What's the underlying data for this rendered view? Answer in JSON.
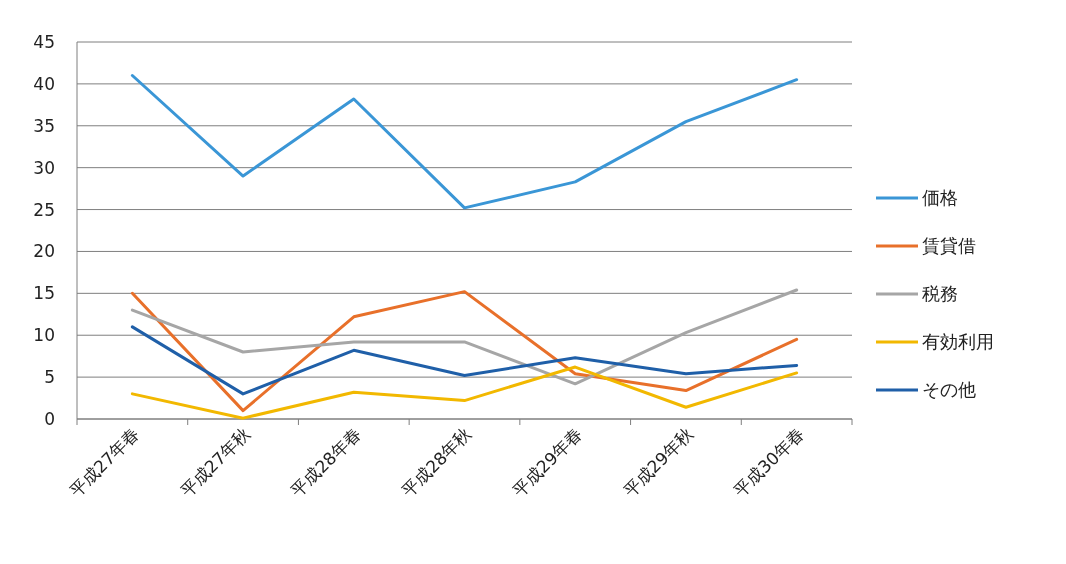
{
  "chart_data": {
    "type": "line",
    "categories": [
      "平成27年春",
      "平成27年秋",
      "平成28年春",
      "平成28年秋",
      "平成29年春",
      "平成29年秋",
      "平成30年春"
    ],
    "series": [
      {
        "name": "価格",
        "color": "#3a96d6",
        "values": [
          41,
          29,
          38.2,
          25.2,
          28.3,
          35.5,
          40.5
        ]
      },
      {
        "name": "賃貸借",
        "color": "#e8702a",
        "values": [
          15,
          1,
          12.2,
          15.2,
          5.4,
          3.4,
          9.5
        ]
      },
      {
        "name": "税務",
        "color": "#a6a6a6",
        "values": [
          13,
          8,
          9.2,
          9.2,
          4.2,
          10.3,
          15.4
        ]
      },
      {
        "name": "有効利用",
        "color": "#f2b800",
        "values": [
          3,
          0.1,
          3.2,
          2.2,
          6.2,
          1.4,
          5.5
        ]
      },
      {
        "name": "その他",
        "color": "#1f5fa8",
        "values": [
          11,
          3,
          8.2,
          5.2,
          7.3,
          5.4,
          6.4
        ]
      }
    ],
    "ylim": [
      0,
      45
    ],
    "yticks": [
      0,
      5,
      10,
      15,
      20,
      25,
      30,
      35,
      40,
      45
    ],
    "grid": "y",
    "legend": "right",
    "marker": "none",
    "line_style": "solid"
  }
}
